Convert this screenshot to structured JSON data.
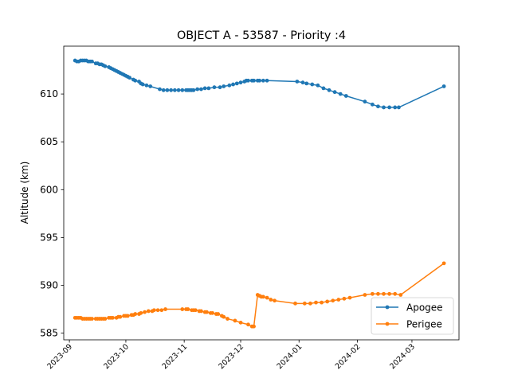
{
  "chart_data": {
    "type": "line",
    "title": "OBJECT A - 53587 - Priority :4",
    "xlabel": "",
    "ylabel": "Altitude (km)",
    "xlim": [
      "2023-08-29",
      "2024-03-26"
    ],
    "ylim": [
      584.3,
      615.0
    ],
    "yticks": [
      585,
      590,
      595,
      600,
      605,
      610
    ],
    "xticks": [
      "2023-09-01",
      "2023-10-01",
      "2023-11-01",
      "2023-12-01",
      "2024-01-01",
      "2024-02-01",
      "2024-03-01"
    ],
    "xtick_labels": [
      "2023-09",
      "2023-10",
      "2023-11",
      "2023-12",
      "2024-01",
      "2024-02",
      "2024-03"
    ],
    "grid": false,
    "legend_position": "lower-right",
    "series": [
      {
        "name": "Apogee",
        "color": "#1f77b4",
        "points": [
          [
            "2023-09-04",
            613.5
          ],
          [
            "2023-09-05",
            613.4
          ],
          [
            "2023-09-06",
            613.4
          ],
          [
            "2023-09-07",
            613.5
          ],
          [
            "2023-09-08",
            613.5
          ],
          [
            "2023-09-09",
            613.5
          ],
          [
            "2023-09-10",
            613.5
          ],
          [
            "2023-09-11",
            613.4
          ],
          [
            "2023-09-12",
            613.4
          ],
          [
            "2023-09-13",
            613.4
          ],
          [
            "2023-09-15",
            613.2
          ],
          [
            "2023-09-16",
            613.2
          ],
          [
            "2023-09-17",
            613.1
          ],
          [
            "2023-09-18",
            613.1
          ],
          [
            "2023-09-19",
            613.0
          ],
          [
            "2023-09-20",
            612.9
          ],
          [
            "2023-09-22",
            612.8
          ],
          [
            "2023-09-23",
            612.7
          ],
          [
            "2023-09-24",
            612.6
          ],
          [
            "2023-09-25",
            612.5
          ],
          [
            "2023-09-26",
            612.4
          ],
          [
            "2023-09-27",
            612.3
          ],
          [
            "2023-09-28",
            612.2
          ],
          [
            "2023-09-29",
            612.1
          ],
          [
            "2023-09-30",
            612.0
          ],
          [
            "2023-10-01",
            611.9
          ],
          [
            "2023-10-02",
            611.8
          ],
          [
            "2023-10-03",
            611.7
          ],
          [
            "2023-10-05",
            611.5
          ],
          [
            "2023-10-06",
            611.4
          ],
          [
            "2023-10-08",
            611.3
          ],
          [
            "2023-10-09",
            611.1
          ],
          [
            "2023-10-10",
            611.0
          ],
          [
            "2023-10-12",
            610.9
          ],
          [
            "2023-10-14",
            610.8
          ],
          [
            "2023-10-19",
            610.5
          ],
          [
            "2023-10-21",
            610.4
          ],
          [
            "2023-10-23",
            610.4
          ],
          [
            "2023-10-25",
            610.4
          ],
          [
            "2023-10-27",
            610.4
          ],
          [
            "2023-10-29",
            610.4
          ],
          [
            "2023-10-31",
            610.4
          ],
          [
            "2023-11-02",
            610.4
          ],
          [
            "2023-11-03",
            610.4
          ],
          [
            "2023-11-04",
            610.4
          ],
          [
            "2023-11-05",
            610.4
          ],
          [
            "2023-11-06",
            610.4
          ],
          [
            "2023-11-08",
            610.5
          ],
          [
            "2023-11-10",
            610.5
          ],
          [
            "2023-11-12",
            610.6
          ],
          [
            "2023-11-14",
            610.6
          ],
          [
            "2023-11-17",
            610.7
          ],
          [
            "2023-11-20",
            610.7
          ],
          [
            "2023-11-22",
            610.8
          ],
          [
            "2023-11-25",
            610.9
          ],
          [
            "2023-11-27",
            611.0
          ],
          [
            "2023-11-29",
            611.1
          ],
          [
            "2023-12-01",
            611.2
          ],
          [
            "2023-12-03",
            611.3
          ],
          [
            "2023-12-04",
            611.4
          ],
          [
            "2023-12-05",
            611.4
          ],
          [
            "2023-12-07",
            611.4
          ],
          [
            "2023-12-08",
            611.4
          ],
          [
            "2023-12-10",
            611.4
          ],
          [
            "2023-12-11",
            611.4
          ],
          [
            "2023-12-13",
            611.4
          ],
          [
            "2023-12-15",
            611.4
          ],
          [
            "2023-12-31",
            611.3
          ],
          [
            "2024-01-03",
            611.2
          ],
          [
            "2024-01-05",
            611.1
          ],
          [
            "2024-01-08",
            611.0
          ],
          [
            "2024-01-11",
            610.9
          ],
          [
            "2024-01-14",
            610.6
          ],
          [
            "2024-01-17",
            610.4
          ],
          [
            "2024-01-20",
            610.2
          ],
          [
            "2024-01-23",
            610.0
          ],
          [
            "2024-01-26",
            609.8
          ],
          [
            "2024-02-05",
            609.2
          ],
          [
            "2024-02-09",
            608.9
          ],
          [
            "2024-02-12",
            608.7
          ],
          [
            "2024-02-15",
            608.6
          ],
          [
            "2024-02-18",
            608.6
          ],
          [
            "2024-02-21",
            608.6
          ],
          [
            "2024-02-23",
            608.6
          ],
          [
            "2024-03-18",
            610.8
          ]
        ]
      },
      {
        "name": "Perigee",
        "color": "#ff7f0e",
        "points": [
          [
            "2023-09-04",
            586.6
          ],
          [
            "2023-09-05",
            586.6
          ],
          [
            "2023-09-06",
            586.6
          ],
          [
            "2023-09-07",
            586.6
          ],
          [
            "2023-09-08",
            586.5
          ],
          [
            "2023-09-09",
            586.5
          ],
          [
            "2023-09-10",
            586.5
          ],
          [
            "2023-09-11",
            586.5
          ],
          [
            "2023-09-12",
            586.5
          ],
          [
            "2023-09-13",
            586.5
          ],
          [
            "2023-09-15",
            586.5
          ],
          [
            "2023-09-16",
            586.5
          ],
          [
            "2023-09-17",
            586.5
          ],
          [
            "2023-09-18",
            586.5
          ],
          [
            "2023-09-19",
            586.5
          ],
          [
            "2023-09-20",
            586.5
          ],
          [
            "2023-09-22",
            586.6
          ],
          [
            "2023-09-23",
            586.6
          ],
          [
            "2023-09-24",
            586.6
          ],
          [
            "2023-09-26",
            586.6
          ],
          [
            "2023-09-27",
            586.7
          ],
          [
            "2023-09-28",
            586.7
          ],
          [
            "2023-09-30",
            586.8
          ],
          [
            "2023-10-01",
            586.8
          ],
          [
            "2023-10-02",
            586.8
          ],
          [
            "2023-10-04",
            586.9
          ],
          [
            "2023-10-05",
            586.9
          ],
          [
            "2023-10-06",
            587.0
          ],
          [
            "2023-10-08",
            587.0
          ],
          [
            "2023-10-09",
            587.1
          ],
          [
            "2023-10-11",
            587.2
          ],
          [
            "2023-10-13",
            587.3
          ],
          [
            "2023-10-15",
            587.3
          ],
          [
            "2023-10-16",
            587.4
          ],
          [
            "2023-10-18",
            587.4
          ],
          [
            "2023-10-20",
            587.4
          ],
          [
            "2023-10-22",
            587.5
          ],
          [
            "2023-10-31",
            587.5
          ],
          [
            "2023-11-02",
            587.5
          ],
          [
            "2023-11-03",
            587.5
          ],
          [
            "2023-11-05",
            587.4
          ],
          [
            "2023-11-06",
            587.4
          ],
          [
            "2023-11-07",
            587.4
          ],
          [
            "2023-11-09",
            587.3
          ],
          [
            "2023-11-10",
            587.3
          ],
          [
            "2023-11-12",
            587.2
          ],
          [
            "2023-11-13",
            587.2
          ],
          [
            "2023-11-15",
            587.1
          ],
          [
            "2023-11-16",
            587.1
          ],
          [
            "2023-11-18",
            587.0
          ],
          [
            "2023-11-19",
            587.0
          ],
          [
            "2023-11-21",
            586.8
          ],
          [
            "2023-11-22",
            586.7
          ],
          [
            "2023-11-24",
            586.5
          ],
          [
            "2023-11-28",
            586.3
          ],
          [
            "2023-12-01",
            586.1
          ],
          [
            "2023-12-05",
            585.9
          ],
          [
            "2023-12-07",
            585.7
          ],
          [
            "2023-12-08",
            585.7
          ],
          [
            "2023-12-10",
            589.0
          ],
          [
            "2023-12-11",
            588.9
          ],
          [
            "2023-12-12",
            588.8
          ],
          [
            "2023-12-13",
            588.8
          ],
          [
            "2023-12-15",
            588.7
          ],
          [
            "2023-12-17",
            588.5
          ],
          [
            "2023-12-19",
            588.4
          ],
          [
            "2023-12-30",
            588.1
          ],
          [
            "2024-01-04",
            588.1
          ],
          [
            "2024-01-07",
            588.1
          ],
          [
            "2024-01-10",
            588.2
          ],
          [
            "2024-01-13",
            588.2
          ],
          [
            "2024-01-16",
            588.3
          ],
          [
            "2024-01-19",
            588.4
          ],
          [
            "2024-01-22",
            588.5
          ],
          [
            "2024-01-25",
            588.6
          ],
          [
            "2024-01-28",
            588.7
          ],
          [
            "2024-02-05",
            589.0
          ],
          [
            "2024-02-09",
            589.1
          ],
          [
            "2024-02-12",
            589.1
          ],
          [
            "2024-02-15",
            589.1
          ],
          [
            "2024-02-18",
            589.1
          ],
          [
            "2024-02-21",
            589.1
          ],
          [
            "2024-02-24",
            589.0
          ],
          [
            "2024-03-18",
            592.3
          ]
        ]
      }
    ]
  }
}
